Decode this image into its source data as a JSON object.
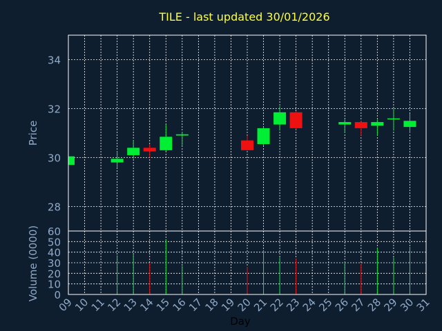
{
  "chart_data": {
    "type": "candlestick",
    "title": "TILE - last updated 30/01/2026",
    "xlabel": "Day",
    "price_panel": {
      "ylabel": "Price",
      "ylim": [
        27.0,
        35.0
      ],
      "yticks": [
        28,
        30,
        32,
        34
      ]
    },
    "volume_panel": {
      "ylabel": "Volume (0000)",
      "ylim": [
        0,
        60
      ],
      "yticks": [
        0,
        10,
        20,
        30,
        40,
        50,
        60
      ]
    },
    "x_ticks": [
      "09",
      "10",
      "11",
      "12",
      "13",
      "14",
      "15",
      "16",
      "17",
      "18",
      "19",
      "20",
      "21",
      "22",
      "23",
      "24",
      "25",
      "26",
      "27",
      "28",
      "29",
      "30",
      "31"
    ],
    "up_color": "#00ee33",
    "down_color": "#ee1111",
    "candles": [
      {
        "day": 9,
        "open": 29.7,
        "high": 30.1,
        "low": 29.65,
        "close": 30.05,
        "volume": 0
      },
      {
        "day": 12,
        "open": 29.8,
        "high": 30.25,
        "low": 29.6,
        "close": 29.95,
        "volume": 37
      },
      {
        "day": 13,
        "open": 30.1,
        "high": 30.7,
        "low": 29.95,
        "close": 30.4,
        "volume": 38
      },
      {
        "day": 14,
        "open": 30.4,
        "high": 30.55,
        "low": 30.0,
        "close": 30.25,
        "volume": 30
      },
      {
        "day": 15,
        "open": 30.3,
        "high": 31.35,
        "low": 30.25,
        "close": 30.85,
        "volume": 52
      },
      {
        "day": 16,
        "open": 30.9,
        "high": 31.05,
        "low": 30.5,
        "close": 30.95,
        "volume": 27
      },
      {
        "day": 20,
        "open": 30.7,
        "high": 30.9,
        "low": 30.3,
        "close": 30.3,
        "volume": 26
      },
      {
        "day": 21,
        "open": 30.55,
        "high": 31.25,
        "low": 30.5,
        "close": 31.2,
        "volume": 42
      },
      {
        "day": 22,
        "open": 31.35,
        "high": 32.1,
        "low": 31.1,
        "close": 31.85,
        "volume": 35
      },
      {
        "day": 23,
        "open": 31.85,
        "high": 31.9,
        "low": 31.15,
        "close": 31.2,
        "volume": 34
      },
      {
        "day": 26,
        "open": 31.35,
        "high": 31.55,
        "low": 31.0,
        "close": 31.45,
        "volume": 31
      },
      {
        "day": 27,
        "open": 31.45,
        "high": 31.5,
        "low": 30.9,
        "close": 31.2,
        "volume": 29
      },
      {
        "day": 28,
        "open": 31.3,
        "high": 31.55,
        "low": 30.9,
        "close": 31.45,
        "volume": 44
      },
      {
        "day": 29,
        "open": 31.6,
        "high": 32.0,
        "low": 31.1,
        "close": 31.6,
        "volume": 35
      },
      {
        "day": 30,
        "open": 31.25,
        "high": 31.8,
        "low": 31.0,
        "close": 31.5,
        "volume": 45
      }
    ]
  }
}
